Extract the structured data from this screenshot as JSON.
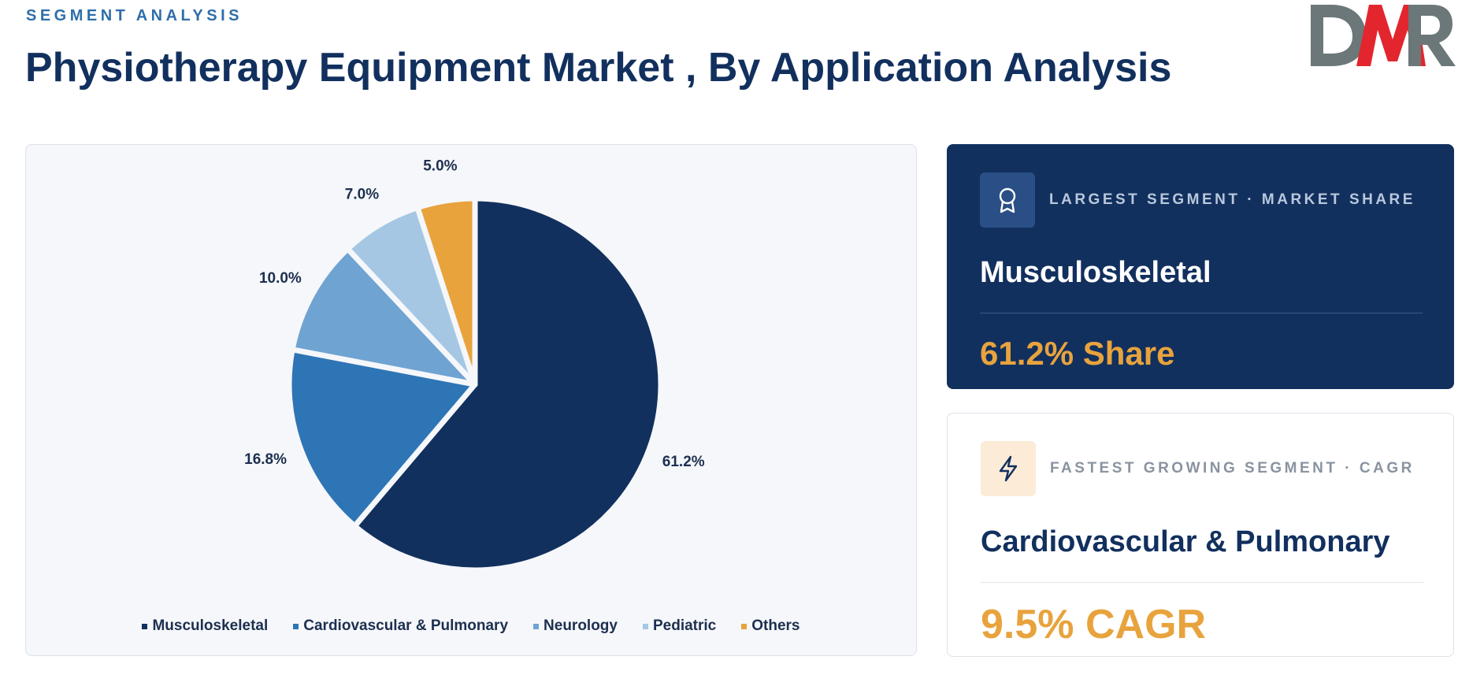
{
  "header": {
    "eyebrow": "SEGMENT ANALYSIS",
    "title": "Physiotherapy Equipment Market , By Application Analysis"
  },
  "logo": {
    "text": "DMR",
    "colors": [
      "#6b7778",
      "#e3262e"
    ]
  },
  "chart_data": {
    "type": "pie",
    "categories": [
      "Musculoskeletal",
      "Cardiovascular & Pulmonary",
      "Neurology",
      "Pediatric",
      "Others"
    ],
    "values": [
      61.2,
      16.8,
      10.0,
      7.0,
      5.0
    ],
    "labels": [
      "61.2%",
      "16.8%",
      "10.0%",
      "7.0%",
      "5.0%"
    ],
    "colors": [
      "#12305e",
      "#2e75b6",
      "#6fa3d2",
      "#a5c7e4",
      "#e8a33d"
    ],
    "legend_position": "bottom",
    "start": "12 o'clock, clockwise"
  },
  "cards": [
    {
      "label": "LARGEST SEGMENT  ·  MARKET SHARE",
      "name": "Musculoskeletal",
      "value": "61.2% Share",
      "icon": "award-ribbon-icon"
    },
    {
      "label": "FASTEST GROWING SEGMENT  ·  CAGR",
      "name": "Cardiovascular & Pulmonary",
      "value": "9.5% CAGR",
      "icon": "lightning-bolt-icon"
    }
  ],
  "accent_colors": {
    "navy": "#12305e",
    "orange": "#e8a33d"
  }
}
